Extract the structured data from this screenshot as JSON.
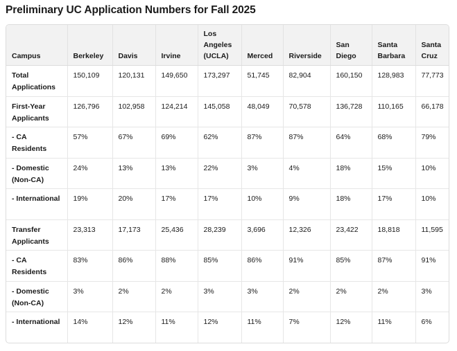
{
  "title": "Preliminary UC Application Numbers for Fall 2025",
  "table": {
    "headers": [
      "Campus",
      "Berkeley",
      "Davis",
      "Irvine",
      "Los Angeles (UCLA)",
      "Merced",
      "Riverside",
      "San Diego",
      "Santa Barbara",
      "Santa Cruz"
    ],
    "rows": [
      [
        "Total Applications",
        "150,109",
        "120,131",
        "149,650",
        "173,297",
        "51,745",
        "82,904",
        "160,150",
        "128,983",
        "77,773"
      ],
      [
        "First-Year Applicants",
        "126,796",
        "102,958",
        "124,214",
        "145,058",
        "48,049",
        "70,578",
        "136,728",
        "110,165",
        "66,178"
      ],
      [
        "- CA Residents",
        "57%",
        "67%",
        "69%",
        "62%",
        "87%",
        "87%",
        "64%",
        "68%",
        "79%"
      ],
      [
        "- Domestic (Non-CA)",
        "24%",
        "13%",
        "13%",
        "22%",
        "3%",
        "4%",
        "18%",
        "15%",
        "10%"
      ],
      [
        "- International",
        "19%",
        "20%",
        "17%",
        "17%",
        "10%",
        "9%",
        "18%",
        "17%",
        "10%"
      ],
      [
        "Transfer Applicants",
        "23,313",
        "17,173",
        "25,436",
        "28,239",
        "3,696",
        "12,326",
        "23,422",
        "18,818",
        "11,595"
      ],
      [
        "- CA Residents",
        "83%",
        "86%",
        "88%",
        "85%",
        "86%",
        "91%",
        "85%",
        "87%",
        "91%"
      ],
      [
        "- Domestic (Non-CA)",
        "3%",
        "2%",
        "2%",
        "3%",
        "3%",
        "2%",
        "2%",
        "2%",
        "3%"
      ],
      [
        "- International",
        "14%",
        "12%",
        "11%",
        "12%",
        "11%",
        "7%",
        "12%",
        "11%",
        "6%"
      ]
    ]
  }
}
